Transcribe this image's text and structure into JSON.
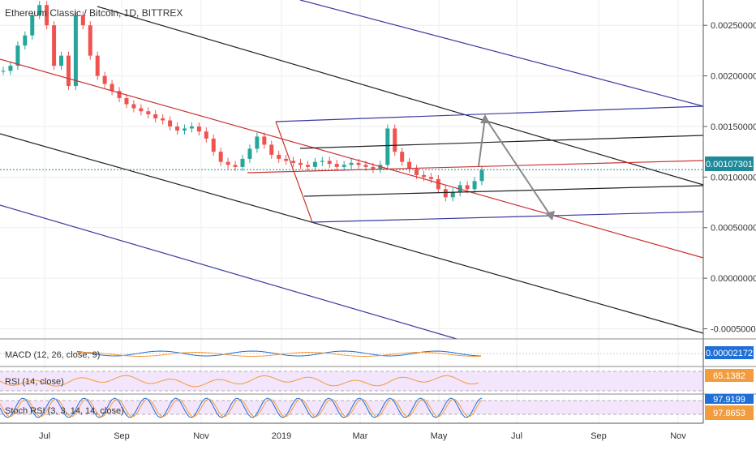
{
  "header": {
    "symbol": "Ethereum Classic / Bitcoin, 1D, BITTREX"
  },
  "colors": {
    "up": "#26a69a",
    "down": "#ef5350",
    "pitchfork_red": "#cc3333",
    "pitchfork_blue": "#3a3a9f",
    "pitchfork_black": "#222222",
    "arrow": "#888888",
    "price_line": "#1e8a9a",
    "rsi_band": "#f3e5fb",
    "rsi_line": "#f39c3d",
    "stoch_k": "#1f6fd6",
    "stoch_d": "#f39c3d",
    "macd_line": "#1f6fd6",
    "signal_line": "#f39c3d"
  },
  "chart_data": {
    "type": "line",
    "title": "Ethereum Classic / Bitcoin, 1D, BITTREX",
    "x_ticks": [
      "Jul",
      "Sep",
      "Nov",
      "2019",
      "Mar",
      "May",
      "Jul",
      "Sep",
      "Nov"
    ],
    "y_ticks": [
      "0.00250000",
      "0.00200000",
      "0.00150000",
      "0.00100000",
      "0.00050000",
      "0.00000000",
      "-0.00050000"
    ],
    "ylim": [
      -0.0006,
      0.00275
    ],
    "last_price": "0.00107301",
    "series": [
      {
        "values": [
          0.00205,
          0.0021,
          0.0023,
          0.0024,
          0.0026,
          0.0027,
          0.0025,
          0.0021,
          0.0022,
          0.0019,
          0.0026,
          0.0025,
          0.0022,
          0.002,
          0.00192,
          0.00185,
          0.00178,
          0.00172,
          0.00168,
          0.00165,
          0.00162,
          0.00158,
          0.00156,
          0.0015,
          0.00146,
          0.00148,
          0.0015,
          0.00145,
          0.00138,
          0.00125,
          0.00115,
          0.00112,
          0.0011,
          0.00118,
          0.00128,
          0.0014,
          0.00132,
          0.00122,
          0.00118,
          0.00116,
          0.00114,
          0.00112,
          0.0011,
          0.00115,
          0.00116,
          0.00113,
          0.0011,
          0.00112,
          0.00114,
          0.00112,
          0.0011,
          0.00108,
          0.00112,
          0.00148,
          0.00125,
          0.00115,
          0.00108,
          0.00102,
          0.001,
          0.00098,
          0.00088,
          0.0008,
          0.00085,
          0.00092,
          0.00088,
          0.00096,
          0.00107
        ]
      }
    ],
    "indicators": {
      "macd": {
        "label": "MACD (12, 26, close, 9)",
        "value": "0.00002172"
      },
      "rsi": {
        "label": "RSI (14, close)",
        "value": "65.1382"
      },
      "stoch_rsi": {
        "label": "Stoch RSI (3, 3, 14, 14, close)",
        "k_value": "97.9199",
        "d_value": "97.8653"
      }
    }
  }
}
